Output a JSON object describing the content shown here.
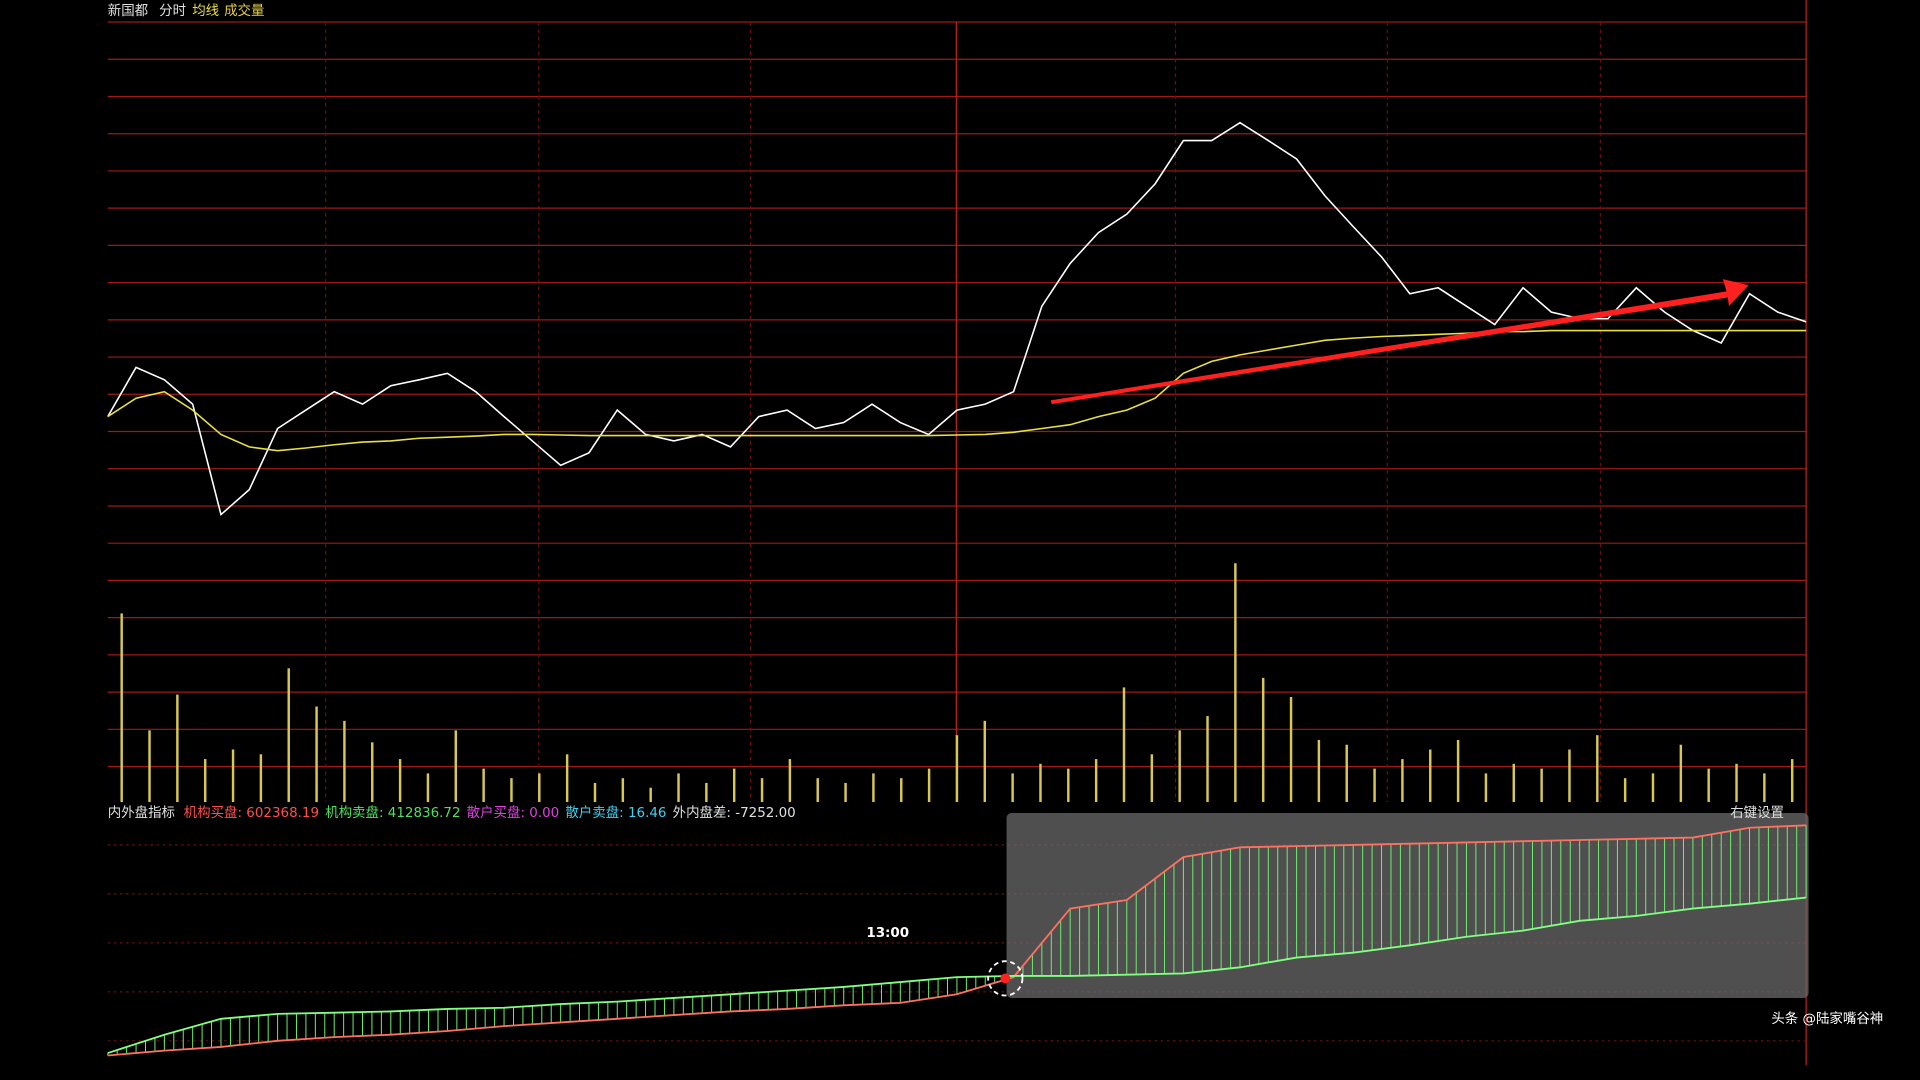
{
  "header": {
    "stock": "新国都",
    "mode": "分时"
  },
  "chart_data": [
    {
      "type": "line",
      "ylim": [
        0,
        100
      ],
      "series": [
        {
          "color": "#ffffff",
          "values": [
            27.1,
            36.2,
            33.9,
            29.4,
            9.0,
            13.6,
            24.9,
            28.3,
            31.7,
            29.4,
            32.8,
            33.9,
            35.1,
            31.7,
            27.1,
            22.6,
            18.1,
            20.4,
            28.3,
            23.8,
            22.6,
            23.8,
            21.5,
            27.1,
            28.3,
            24.9,
            26.0,
            29.4,
            26.0,
            23.8,
            28.3,
            29.4,
            31.7,
            47.5,
            55.4,
            61.1,
            64.5,
            70.1,
            78.1,
            78.1,
            81.4,
            78.1,
            74.7,
            67.9,
            62.2,
            56.6,
            49.8,
            50.9,
            47.5,
            44.1,
            50.9,
            46.4,
            45.2,
            45.2,
            50.9,
            46.4,
            43.0,
            40.7,
            49.8,
            46.4,
            44.6
          ]
        },
        {
          "name": "均线",
          "color": "#e8e040",
          "values": [
            27.1,
            30.5,
            31.7,
            28.3,
            23.8,
            21.5,
            20.8,
            21.3,
            21.9,
            22.4,
            22.6,
            23.1,
            23.3,
            23.5,
            23.8,
            23.8,
            23.7,
            23.6,
            23.6,
            23.6,
            23.6,
            23.6,
            23.6,
            23.6,
            23.6,
            23.6,
            23.6,
            23.6,
            23.6,
            23.6,
            23.7,
            23.8,
            24.2,
            24.9,
            25.6,
            27.1,
            28.3,
            30.5,
            35.1,
            37.3,
            38.5,
            39.4,
            40.3,
            41.2,
            41.6,
            41.9,
            42.1,
            42.3,
            42.5,
            42.8,
            42.8,
            43.0,
            43.0,
            43.0,
            43.0,
            43.0,
            43.0,
            43.0,
            43.0,
            43.0,
            43.0
          ]
        }
      ]
    },
    {
      "type": "bar",
      "title": "成交量",
      "color": "#d8c850",
      "ylim": [
        0,
        100
      ],
      "values": [
        79,
        30,
        45,
        18,
        22,
        20,
        56,
        40,
        34,
        25,
        18,
        12,
        30,
        14,
        10,
        12,
        20,
        8,
        10,
        6,
        12,
        8,
        14,
        10,
        18,
        10,
        8,
        12,
        10,
        14,
        28,
        34,
        12,
        16,
        14,
        18,
        48,
        20,
        30,
        36,
        100,
        52,
        44,
        26,
        24,
        14,
        18,
        22,
        26,
        12,
        16,
        14,
        22,
        28,
        10,
        12,
        24,
        14,
        16,
        12,
        18
      ]
    },
    {
      "type": "hatched-band",
      "title": "内外盘指标",
      "ylim": [
        0,
        100
      ],
      "hatch_color": "#70f070",
      "readouts": [
        {
          "text": "机构买盘: 602368.19",
          "color": "#ff5050"
        },
        {
          "text": "机构卖盘: 412836.72",
          "color": "#50e060"
        },
        {
          "text": "散户买盘: 0.00",
          "color": "#e040e0"
        },
        {
          "text": "散户卖盘: 16.46",
          "color": "#40d0f0"
        },
        {
          "text": "外内盘差: -7252.00",
          "color": "#e0e0e0"
        }
      ],
      "settings_label": "右键设置",
      "annotation": "13:00",
      "series": [
        {
          "color": "#ff7060",
          "values": [
            4,
            6,
            7.5,
            10,
            11.5,
            12.5,
            14,
            16,
            17.5,
            19,
            20.5,
            22,
            23,
            24.5,
            25.5,
            29,
            36,
            64,
            67.5,
            85,
            89,
            89.5,
            90,
            90.5,
            91,
            91.5,
            92,
            92.5,
            93,
            97,
            98
          ]
        },
        {
          "color": "#80ff80",
          "values": [
            5,
            12.5,
            19,
            21,
            21.5,
            22,
            23,
            23.5,
            25,
            26,
            27.5,
            29,
            30.5,
            32,
            34,
            36,
            36.5,
            36.5,
            37,
            37.5,
            40,
            44,
            46,
            49,
            52.5,
            55,
            59,
            61,
            64,
            66,
            68.5
          ]
        }
      ]
    }
  ],
  "watermark": "头条 @陆家嘴谷神"
}
